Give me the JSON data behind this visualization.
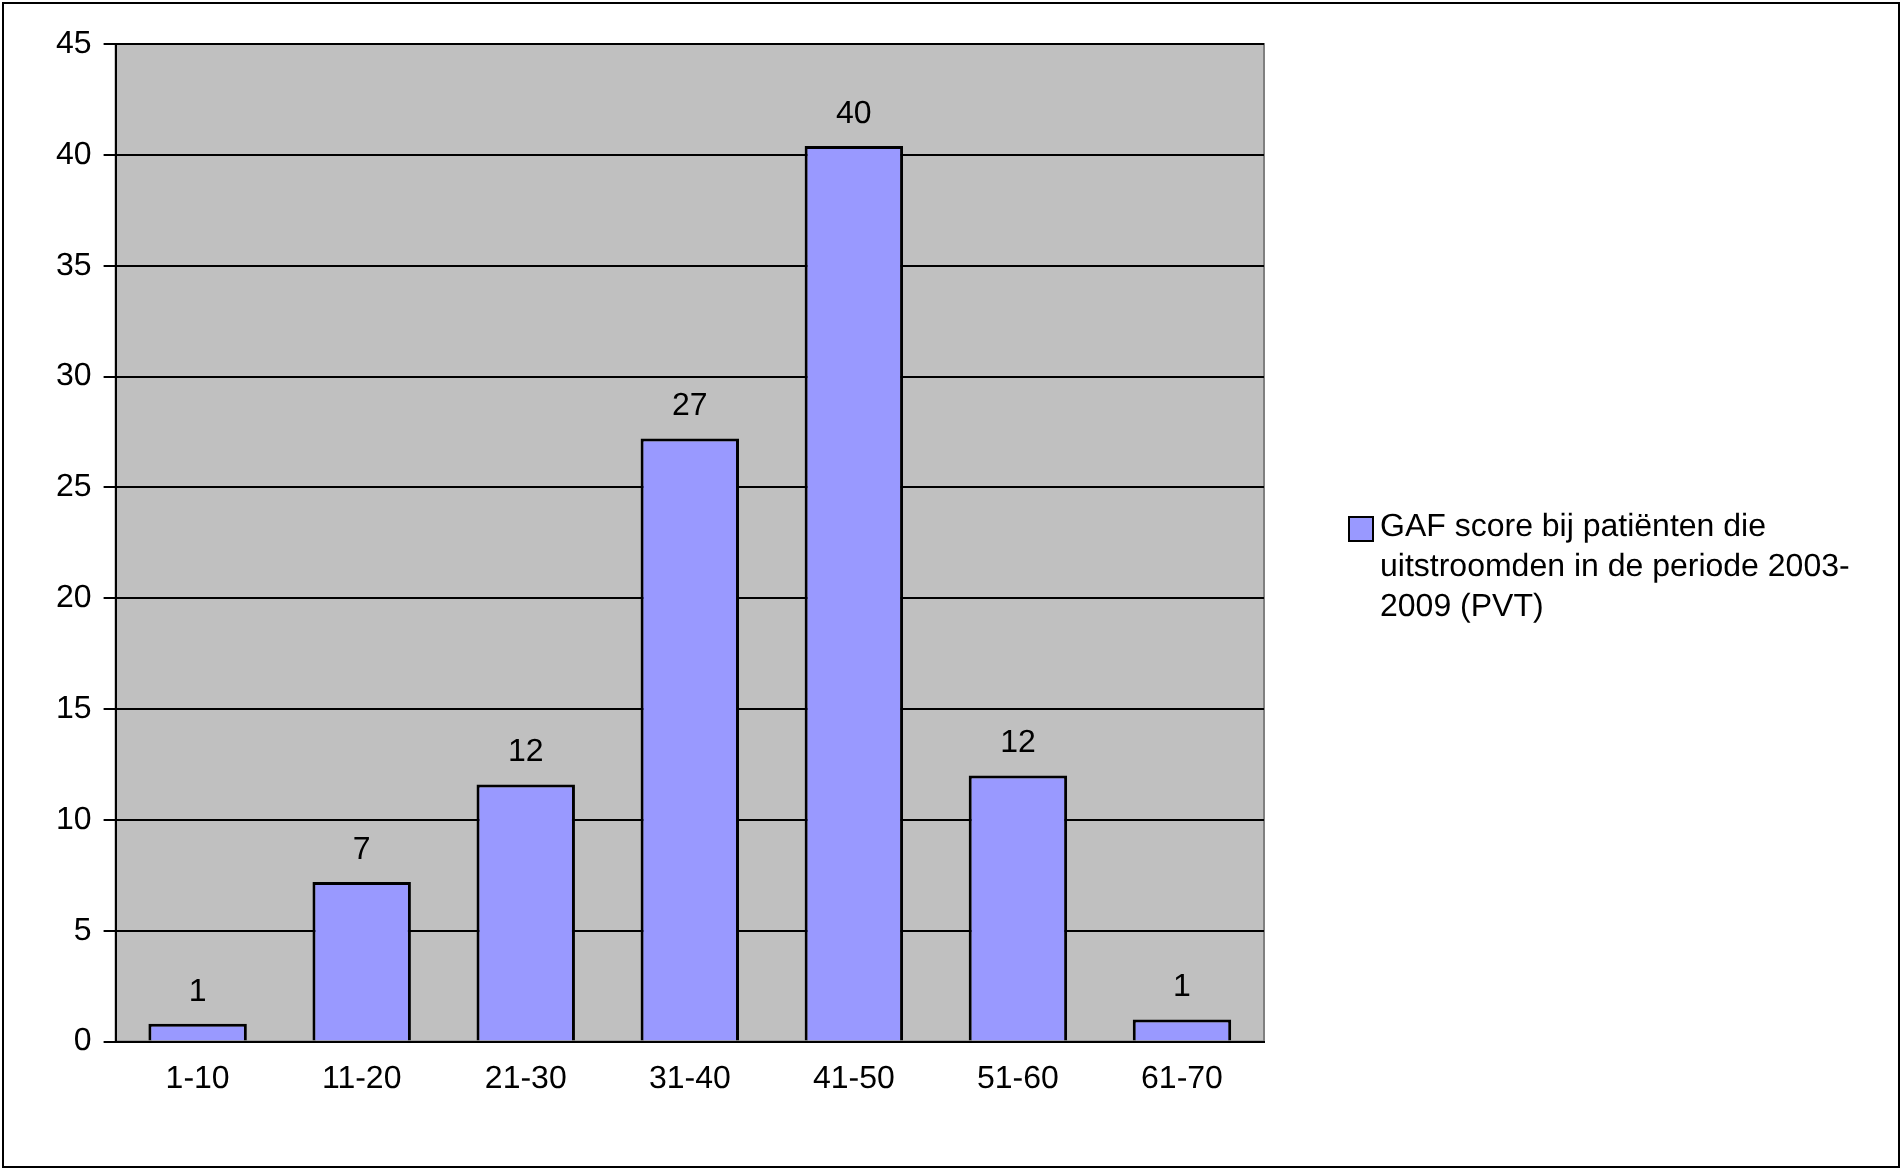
{
  "chart_data": {
    "type": "bar",
    "categories": [
      "1-10",
      "11-20",
      "21-30",
      "31-40",
      "41-50",
      "51-60",
      "61-70"
    ],
    "series": [
      {
        "name": "GAF score bij patiënten die uitstroomden in de periode 2003-2009 (PVT)",
        "color": "#9999ff",
        "values": [
          0.8,
          7.2,
          11.6,
          27.2,
          40.4,
          12,
          1
        ],
        "value_labels": [
          "1",
          "7",
          "12",
          "27",
          "40",
          "12",
          "1"
        ]
      }
    ],
    "ylim": [
      0,
      45
    ],
    "yticks": [
      0,
      5,
      10,
      15,
      20,
      25,
      30,
      35,
      40,
      45
    ],
    "grid": "y",
    "legend": "right"
  }
}
